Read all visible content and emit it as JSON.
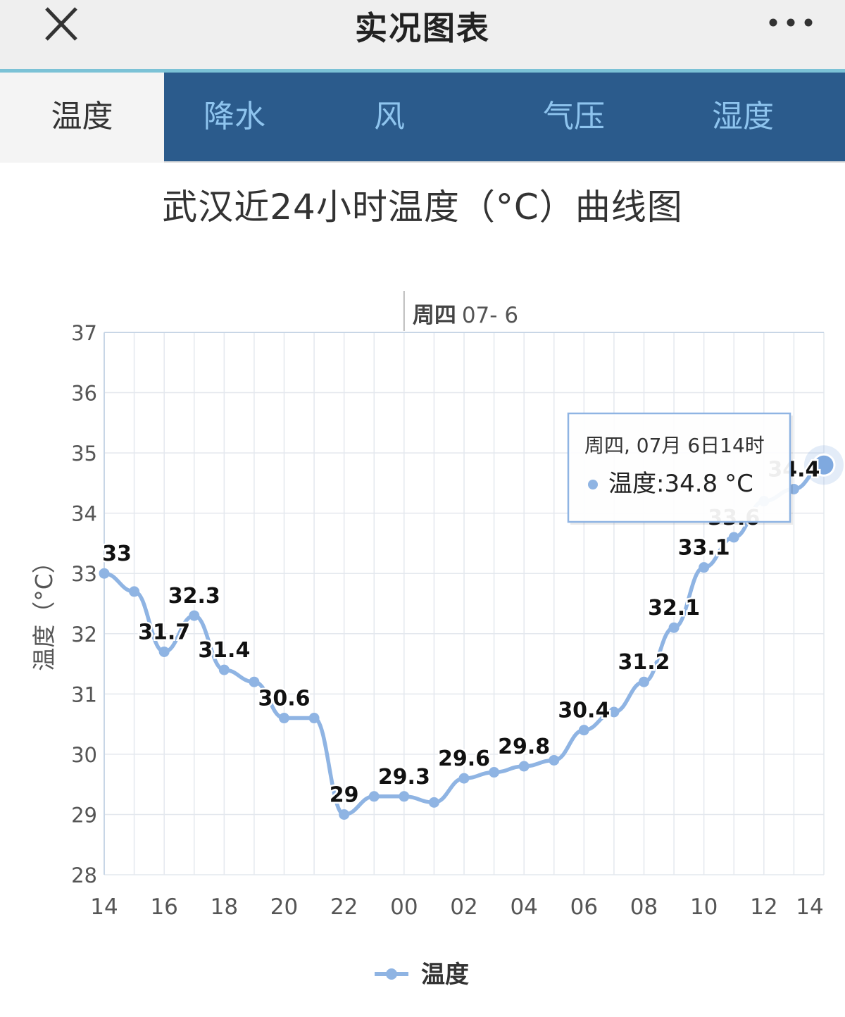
{
  "header": {
    "title": "实况图表",
    "close_icon": "close-icon",
    "more_icon": "more-icon"
  },
  "tabs": [
    {
      "label": "温度",
      "active": true
    },
    {
      "label": "降水",
      "active": false
    },
    {
      "label": "风",
      "active": false
    },
    {
      "label": "气压",
      "active": false
    },
    {
      "label": "湿度",
      "active": false
    }
  ],
  "colors": {
    "tab_bar": "#2b5b8c",
    "tab_text": "#8ec4ee",
    "series": "#8fb4e3",
    "accent_top": "#7bc2d6"
  },
  "chart_data": {
    "type": "line",
    "title": "武汉近24小时温度（°C）曲线图",
    "ylabel": "温度（°C）",
    "ylim": [
      28,
      37
    ],
    "yticks": [
      28,
      29,
      30,
      31,
      32,
      33,
      34,
      35,
      36,
      37
    ],
    "x_tick_labels": [
      "14",
      "16",
      "18",
      "20",
      "22",
      "00",
      "02",
      "04",
      "06",
      "08",
      "10",
      "12",
      "14"
    ],
    "day_marker": {
      "weekday": "周四",
      "date": "07- 6",
      "at": "00"
    },
    "grid": true,
    "legend": "bottom-center",
    "series": [
      {
        "name": "温度",
        "x": [
          "14",
          "15",
          "16",
          "17",
          "18",
          "19",
          "20",
          "21",
          "22",
          "23",
          "00",
          "01",
          "02",
          "03",
          "04",
          "05",
          "06",
          "07",
          "08",
          "09",
          "10",
          "11",
          "12",
          "13",
          "14"
        ],
        "values": [
          33,
          32.7,
          31.7,
          32.3,
          31.4,
          31.2,
          30.6,
          30.6,
          29,
          29.3,
          29.3,
          29.2,
          29.6,
          29.7,
          29.8,
          29.9,
          30.4,
          30.7,
          31.2,
          32.1,
          33.1,
          33.6,
          34.2,
          34.4,
          34.8
        ],
        "labels": [
          "33",
          "",
          "31.7",
          "32.3",
          "31.4",
          "",
          "30.6",
          "",
          "29",
          "",
          "29.3",
          "",
          "29.6",
          "",
          "29.8",
          "",
          "30.4",
          "",
          "31.2",
          "32.1",
          "33.1",
          "33.6",
          "",
          "34.4",
          ""
        ]
      }
    ],
    "tooltip": {
      "header": "周四, 07月 6日14时",
      "series_name": "温度",
      "value": "34.8",
      "unit": "°C"
    }
  }
}
